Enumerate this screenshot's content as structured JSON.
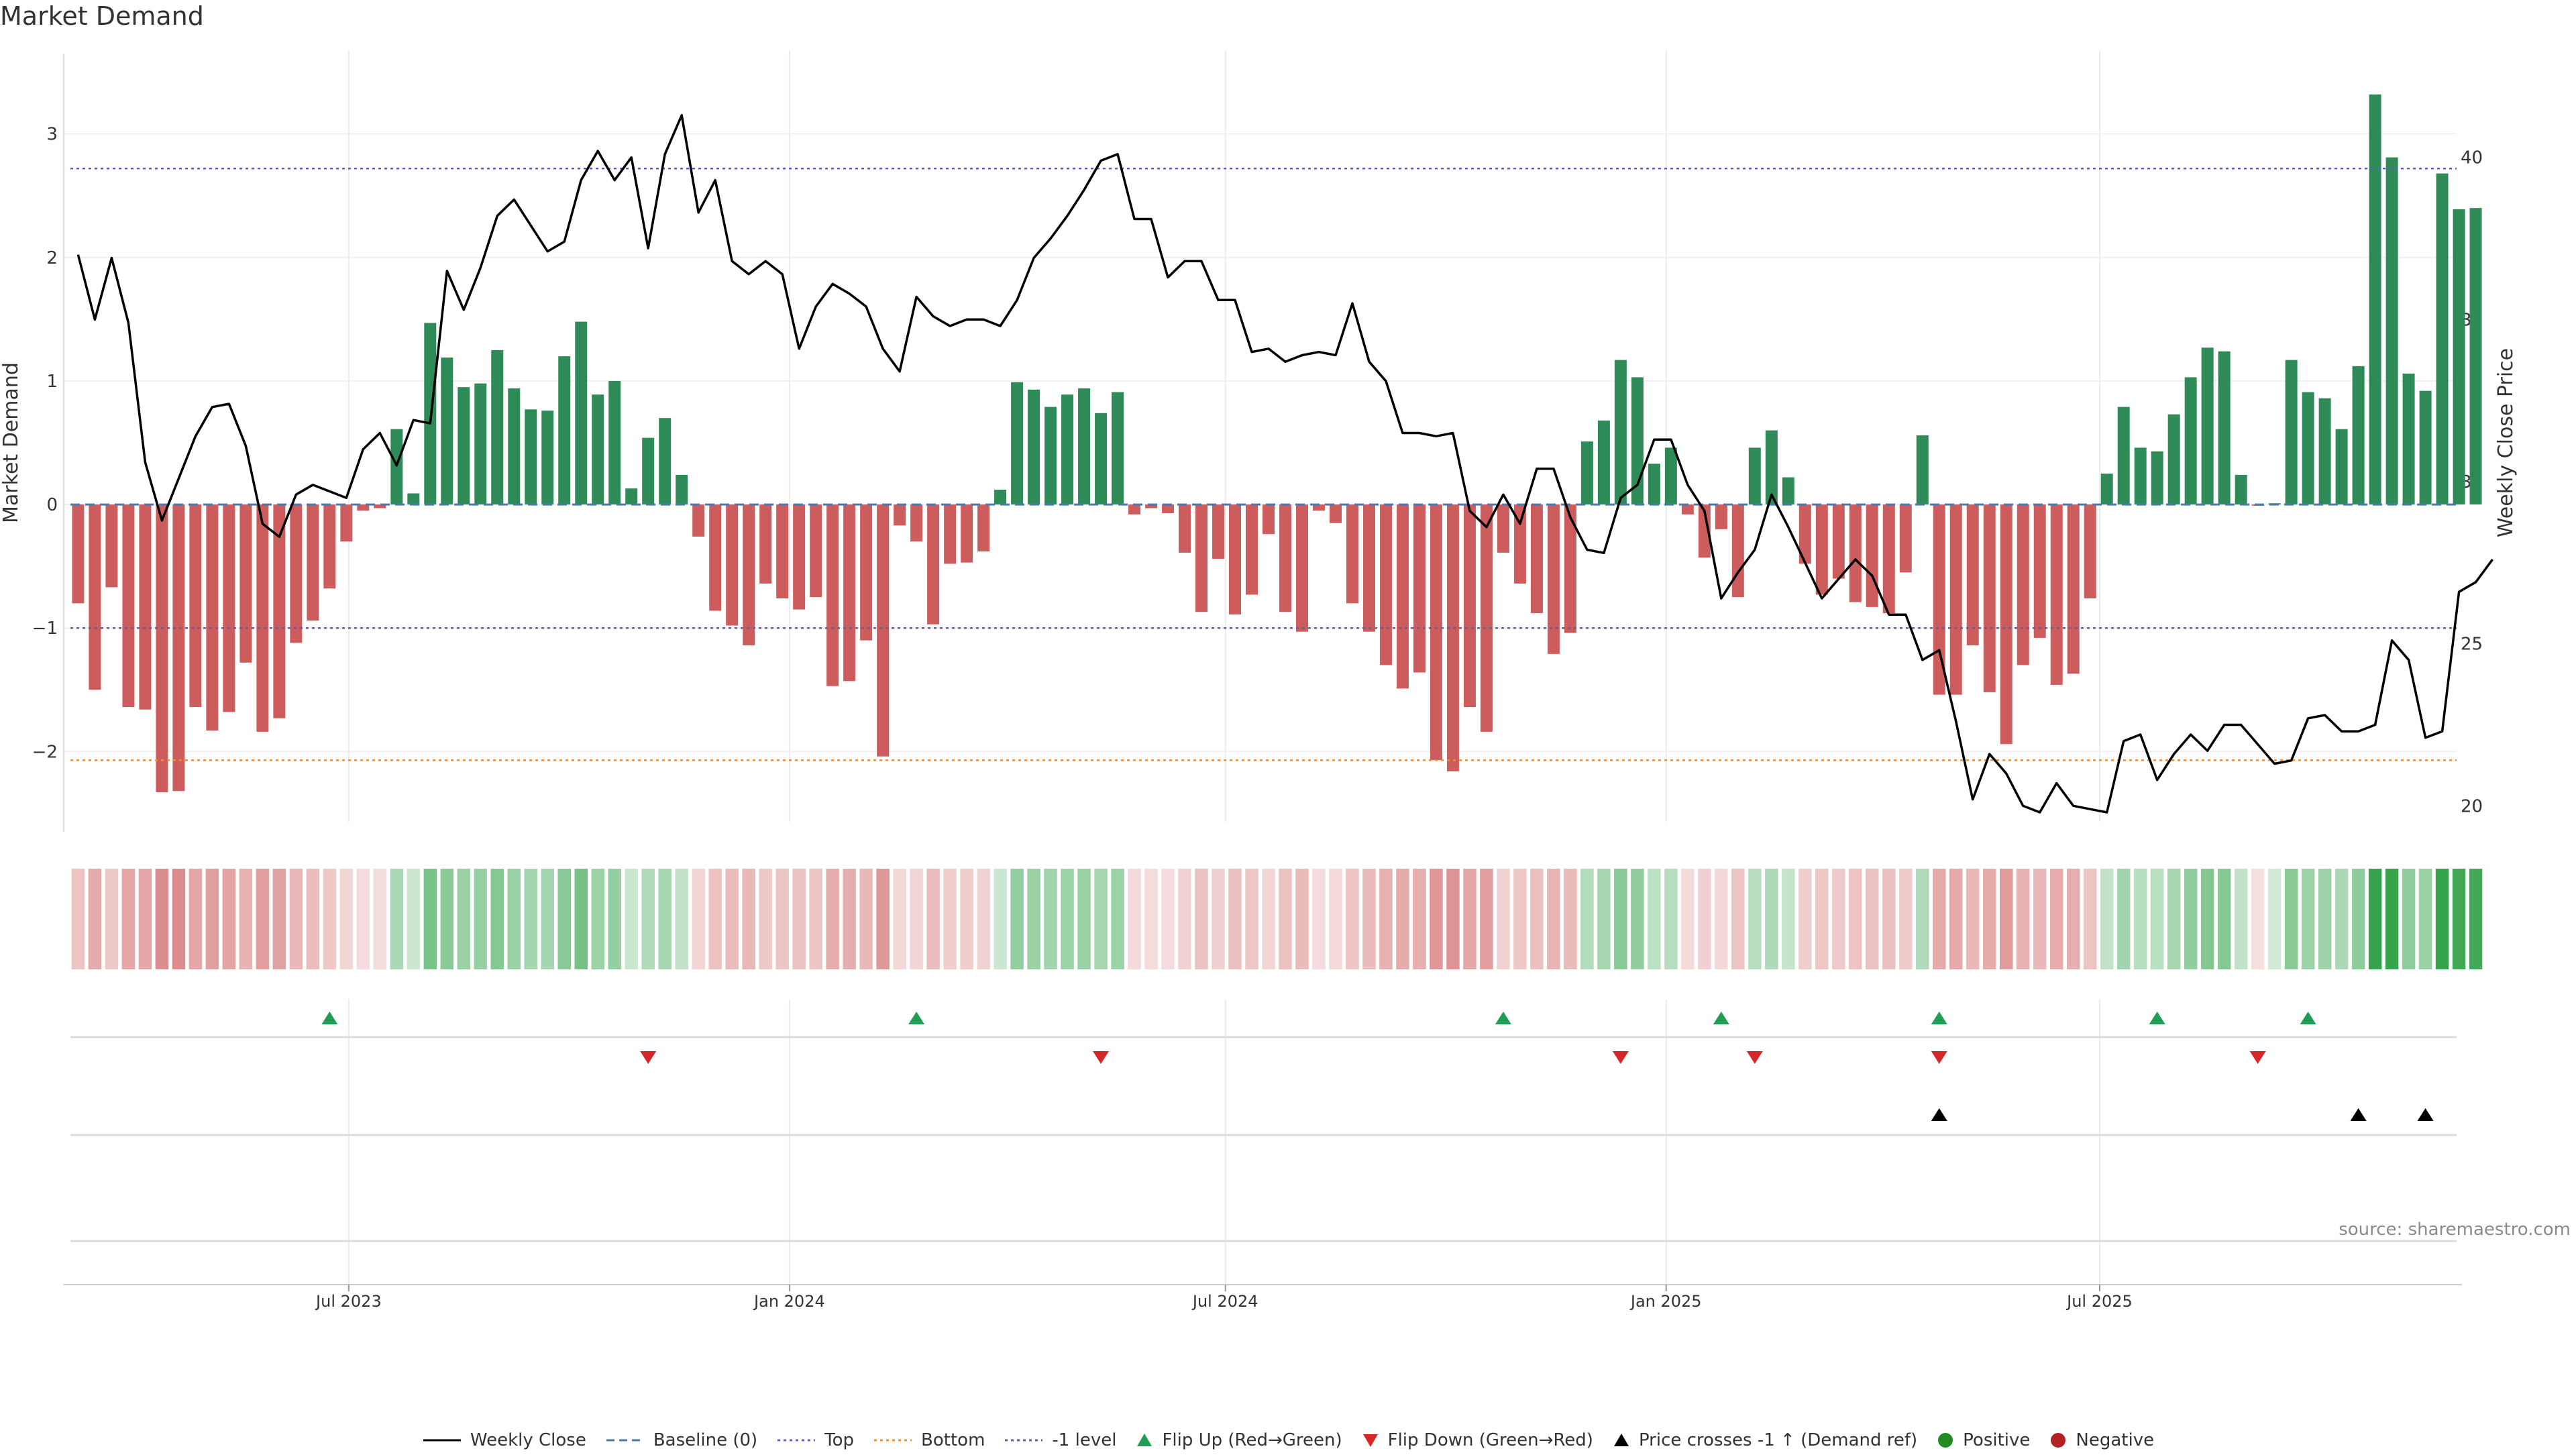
{
  "title": "Market Demand",
  "source": "source: sharemaestro.com",
  "colors": {
    "positive": "#2e8b57",
    "negative": "#cd5c5c",
    "price_line": "#000000",
    "baseline": "#4a78b5",
    "top": "#6a5acd",
    "bottom": "#f28e2b",
    "minus1": "#6a5a9a",
    "flip_up": "#1f9d55",
    "flip_down": "#d62728",
    "cross": "#000000"
  },
  "legend": [
    {
      "label": "Weekly Close",
      "kind": "line-solid",
      "color": "#000000"
    },
    {
      "label": "Baseline (0)",
      "kind": "line-dashed",
      "color": "#4a78b5"
    },
    {
      "label": "Top",
      "kind": "line-dotted",
      "color": "#6a5acd"
    },
    {
      "label": "Bottom",
      "kind": "line-dotted",
      "color": "#f28e2b"
    },
    {
      "label": "-1 level",
      "kind": "line-dotted",
      "color": "#6a5a9a"
    },
    {
      "label": "Flip Up (Red→Green)",
      "kind": "tri-up",
      "color": "#1f9d55"
    },
    {
      "label": "Flip Down (Green→Red)",
      "kind": "tri-down",
      "color": "#d62728"
    },
    {
      "label": "Price crosses -1 ↑ (Demand ref)",
      "kind": "tri-up",
      "color": "#000000"
    },
    {
      "label": "Positive",
      "kind": "dot",
      "color": "#228b22"
    },
    {
      "label": "Negative",
      "kind": "dot",
      "color": "#b22222"
    }
  ],
  "chart_data": {
    "type": "bar",
    "x_start": "2023-03-10",
    "x_step_days": 7,
    "xlim": [
      "2023-03-04",
      "2025-11-27"
    ],
    "x_ticks": [
      {
        "date": "2023-07-01",
        "label": "Jul 2023"
      },
      {
        "date": "2024-01-01",
        "label": "Jan 2024"
      },
      {
        "date": "2024-07-01",
        "label": "Jul 2024"
      },
      {
        "date": "2025-01-01",
        "label": "Jan 2025"
      },
      {
        "date": "2025-07-01",
        "label": "Jul 2025"
      }
    ],
    "ylabel": "Market Demand",
    "ylim": [
      -2.65,
      3.65
    ],
    "y_ticks": [
      -2,
      -1,
      0,
      1,
      2,
      3
    ],
    "y2label": "Weekly Close Price",
    "y2lim": [
      19.2,
      43.2
    ],
    "y2_ticks": [
      20,
      25,
      30,
      35,
      40
    ],
    "levels": {
      "baseline": 0,
      "top": 2.72,
      "bottom": -2.07,
      "minus1": -1
    },
    "demand": [
      -0.8,
      -1.5,
      -0.67,
      -1.64,
      -1.66,
      -2.33,
      -2.32,
      -1.64,
      -1.83,
      -1.68,
      -1.28,
      -1.84,
      -1.73,
      -1.12,
      -0.94,
      -0.68,
      -0.3,
      -0.05,
      -0.03,
      0.61,
      0.09,
      1.47,
      1.19,
      0.95,
      0.98,
      1.25,
      0.94,
      0.77,
      0.76,
      1.2,
      1.48,
      0.89,
      1.0,
      0.13,
      0.54,
      0.7,
      0.24,
      -0.26,
      -0.86,
      -0.98,
      -1.14,
      -0.64,
      -0.76,
      -0.85,
      -0.75,
      -1.47,
      -1.43,
      -1.1,
      -2.04,
      -0.17,
      -0.3,
      -0.97,
      -0.48,
      -0.47,
      -0.38,
      0.12,
      0.99,
      0.93,
      0.79,
      0.89,
      0.94,
      0.74,
      0.91,
      -0.08,
      -0.03,
      -0.07,
      -0.39,
      -0.87,
      -0.44,
      -0.89,
      -0.73,
      -0.24,
      -0.87,
      -1.03,
      -0.05,
      -0.15,
      -0.8,
      -1.03,
      -1.3,
      -1.49,
      -1.36,
      -2.07,
      -2.16,
      -1.64,
      -1.84,
      -0.39,
      -0.64,
      -0.88,
      -1.21,
      -1.04,
      0.51,
      0.68,
      1.17,
      1.03,
      0.33,
      0.46,
      -0.08,
      -0.43,
      -0.2,
      -0.75,
      0.46,
      0.6,
      0.22,
      -0.48,
      -0.73,
      -0.6,
      -0.79,
      -0.83,
      -0.88,
      -0.55,
      0.56,
      -1.54,
      -1.54,
      -1.14,
      -1.52,
      -1.94,
      -1.3,
      -1.08,
      -1.46,
      -1.37,
      -0.76,
      0.25,
      0.79,
      0.46,
      0.43,
      0.73,
      1.03,
      1.27,
      1.24,
      0.24,
      -0.01,
      0.01,
      1.17,
      0.91,
      0.86,
      0.61,
      1.12,
      3.32,
      2.81,
      1.06,
      0.92,
      2.68,
      2.39,
      2.4
    ],
    "series": [
      {
        "name": "Weekly Close",
        "values": [
          37.0,
          35.0,
          36.9,
          34.9,
          30.6,
          28.8,
          30.1,
          31.4,
          32.3,
          32.4,
          31.1,
          28.7,
          28.3,
          29.6,
          29.9,
          29.7,
          29.5,
          31.0,
          31.5,
          30.5,
          31.9,
          31.8,
          36.5,
          35.3,
          36.6,
          38.2,
          38.7,
          37.9,
          37.1,
          37.4,
          39.3,
          40.2,
          39.3,
          40.0,
          37.2,
          40.1,
          41.3,
          38.3,
          39.3,
          36.8,
          36.4,
          36.8,
          36.4,
          34.1,
          35.4,
          36.1,
          35.8,
          35.4,
          34.1,
          33.4,
          35.7,
          35.1,
          34.8,
          35.0,
          35.0,
          34.8,
          35.6,
          36.9,
          37.5,
          38.2,
          39.0,
          39.9,
          40.1,
          38.1,
          38.1,
          36.3,
          36.8,
          36.8,
          35.6,
          35.6,
          34.0,
          34.1,
          33.7,
          33.9,
          34.0,
          33.9,
          35.5,
          33.7,
          33.1,
          31.5,
          31.5,
          31.4,
          31.5,
          29.1,
          28.6,
          29.6,
          28.7,
          30.4,
          30.4,
          28.9,
          27.9,
          27.8,
          29.5,
          29.9,
          31.3,
          31.3,
          29.9,
          29.1,
          26.4,
          27.2,
          27.9,
          29.6,
          28.6,
          27.5,
          26.4,
          27.0,
          27.6,
          27.1,
          25.9,
          25.9,
          24.5,
          24.8,
          22.6,
          20.2,
          21.6,
          21.0,
          20.0,
          19.8,
          20.7,
          20.0,
          19.9,
          19.8,
          22.0,
          22.2,
          20.8,
          21.6,
          22.2,
          21.7,
          22.5,
          22.5,
          21.9,
          21.3,
          21.4,
          22.7,
          22.8,
          22.3,
          22.3,
          22.5,
          25.1,
          24.5,
          22.1,
          22.3,
          26.6,
          26.9,
          27.6
        ]
      }
    ],
    "heat_strip": {
      "intensity_by": "demand"
    },
    "flip_up": [
      "2023-06-23",
      "2024-02-23",
      "2024-10-25",
      "2025-01-24",
      "2025-04-25",
      "2025-07-25",
      "2025-09-26"
    ],
    "flip_down": [
      "2023-11-03",
      "2024-05-10",
      "2024-12-13",
      "2025-02-07",
      "2025-04-25",
      "2025-09-05"
    ],
    "price_cross": [
      "2025-04-25",
      "2025-10-17",
      "2025-11-14"
    ]
  }
}
